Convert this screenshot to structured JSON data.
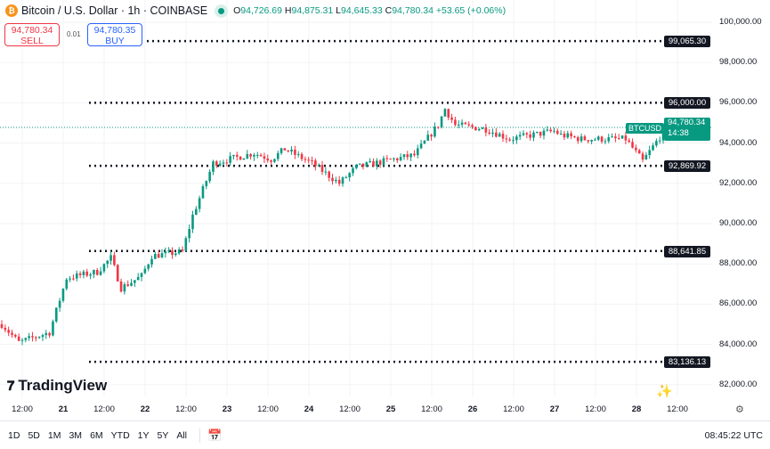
{
  "header": {
    "symbol_title": "Bitcoin / U.S. Dollar · 1h · COINBASE",
    "ohlc": {
      "o_label": "O",
      "o": "94,726.69",
      "h_label": "H",
      "h": "94,875.31",
      "l_label": "L",
      "l": "94,645.33",
      "c_label": "C",
      "c": "94,780.34",
      "change": "+53.65 (+0.06%)"
    }
  },
  "trade": {
    "sell_price": "94,780.34",
    "sell_label": "SELL",
    "spread": "0.01",
    "buy_price": "94,780.35",
    "buy_label": "BUY"
  },
  "price_axis": {
    "ticks": [
      "100,000.00",
      "98,000.00",
      "96,000.00",
      "94,000.00",
      "92,000.00",
      "90,000.00",
      "88,000.00",
      "86,000.00",
      "84,000.00",
      "82,000.00"
    ]
  },
  "levels": [
    {
      "label": "99,065.30",
      "value": 99065.3
    },
    {
      "label": "96,000.00",
      "value": 96000
    },
    {
      "label": "92,869.92",
      "value": 92869.92
    },
    {
      "label": "88,641.85",
      "value": 88641.85
    },
    {
      "label": "83,136.13",
      "value": 83136.13
    }
  ],
  "current": {
    "symbol": "BTCUSD",
    "price": "94,780.34",
    "countdown": "14:38",
    "value": 94780.34
  },
  "time_axis": [
    "12:00",
    "21",
    "12:00",
    "22",
    "12:00",
    "23",
    "12:00",
    "24",
    "12:00",
    "25",
    "12:00",
    "26",
    "12:00",
    "27",
    "12:00",
    "28",
    "12:00"
  ],
  "bottom": {
    "ranges": [
      "1D",
      "5D",
      "1M",
      "3M",
      "6M",
      "YTD",
      "1Y",
      "5Y",
      "All"
    ],
    "clock": "08:45:22 UTC"
  },
  "logo": "TradingView",
  "colors": {
    "up": "#089981",
    "down": "#f23645"
  },
  "chart_data": {
    "type": "candlestick",
    "ylim": [
      82000,
      100000
    ],
    "interval": "1h",
    "close_keypoints": [
      [
        0,
        85000
      ],
      [
        5,
        84100
      ],
      [
        14,
        84600
      ],
      [
        19,
        87300
      ],
      [
        28,
        87600
      ],
      [
        32,
        88300
      ],
      [
        35,
        86800
      ],
      [
        41,
        87400
      ],
      [
        44,
        88400
      ],
      [
        53,
        88600
      ],
      [
        56,
        90400
      ],
      [
        62,
        93000
      ],
      [
        74,
        93500
      ],
      [
        79,
        93200
      ],
      [
        83,
        93700
      ],
      [
        91,
        93000
      ],
      [
        99,
        92000
      ],
      [
        104,
        92800
      ],
      [
        115,
        93200
      ],
      [
        121,
        93400
      ],
      [
        128,
        94900
      ],
      [
        130,
        95700
      ],
      [
        133,
        94900
      ],
      [
        142,
        94700
      ],
      [
        149,
        94200
      ],
      [
        162,
        94600
      ],
      [
        164,
        94400
      ],
      [
        170,
        94200
      ],
      [
        183,
        94200
      ],
      [
        188,
        93100
      ],
      [
        195,
        94780
      ]
    ]
  }
}
